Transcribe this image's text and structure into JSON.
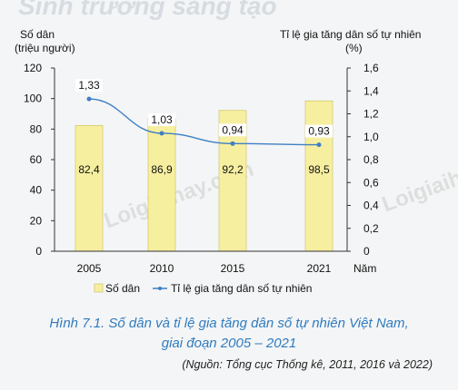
{
  "header_text": "Sinh trưởng sáng tạo",
  "chart_data": {
    "type": "bar+line",
    "categories": [
      "2005",
      "2010",
      "2015",
      "2021"
    ],
    "series": [
      {
        "name": "Số dân",
        "type": "bar",
        "axis": "left",
        "color": "#f7efa0",
        "values": [
          82.4,
          86.9,
          92.2,
          98.5
        ]
      },
      {
        "name": "Tỉ lệ gia tăng dân số tự nhiên",
        "type": "line",
        "axis": "right",
        "color": "#3d7fc4",
        "values": [
          1.33,
          1.03,
          0.94,
          0.93
        ]
      }
    ],
    "bar_labels": [
      "82,4",
      "86,9",
      "92,2",
      "98,5"
    ],
    "line_labels": [
      "1,33",
      "1,03",
      "0,94",
      "0,93"
    ],
    "left_axis": {
      "label_line1": "Số dân",
      "label_line2": "(triệu người)",
      "ylim": [
        0,
        120
      ],
      "ticks": [
        "0",
        "20",
        "40",
        "60",
        "80",
        "100",
        "120"
      ]
    },
    "right_axis": {
      "label_line1": "Tỉ lệ gia tăng dân số tự nhiên",
      "label_line2": "(%)",
      "ylim": [
        0,
        1.6
      ],
      "ticks": [
        "0",
        "0,2",
        "0,4",
        "0,6",
        "0,8",
        "1,0",
        "1,2",
        "1,4",
        "1,6"
      ]
    },
    "xlabel": "Năm",
    "legend": {
      "position": "bottom",
      "entries": [
        "Số dân",
        "Tỉ lệ gia tăng dân số tự nhiên"
      ]
    },
    "grid": false,
    "title_line1": "Hình 7.1. Số dân và tỉ lệ gia tăng dân số tự nhiên Việt Nam,",
    "title_line2": "giai đoạn 2005 – 2021",
    "source": "(Nguồn: Tổng cục Thống kê, 2011, 2016 và 2022)",
    "watermark": "Loigiaihay.com"
  }
}
